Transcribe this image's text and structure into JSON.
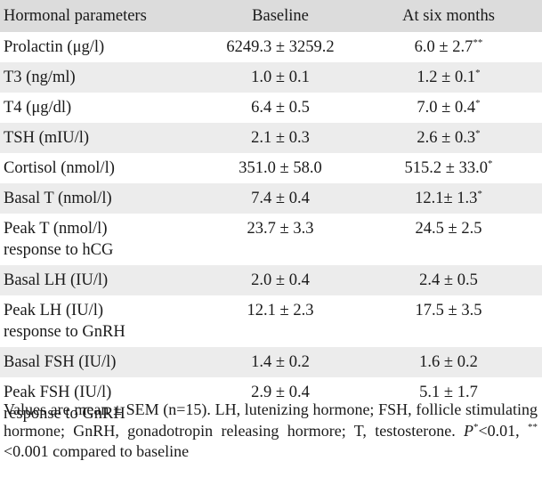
{
  "table": {
    "headers": [
      "Hormonal parameters",
      "Baseline",
      "At six months"
    ],
    "rows": [
      {
        "param": "Prolactin (μg/l)",
        "baseline": "6249.3 ± 3259.2",
        "six_months": "6.0 ± 2.7",
        "mark": "**"
      },
      {
        "param": "T3 (ng/ml)",
        "baseline": "1.0 ± 0.1",
        "six_months": "1.2 ± 0.1",
        "mark": "*"
      },
      {
        "param": "T4 (μg/dl)",
        "baseline": "6.4 ± 0.5",
        "six_months": "7.0 ± 0.4",
        "mark": "*"
      },
      {
        "param": "TSH (mIU/l)",
        "baseline": "2.1 ± 0.3",
        "six_months": "2.6 ± 0.3",
        "mark": "*"
      },
      {
        "param": "Cortisol (nmol/l)",
        "baseline": "351.0 ± 58.0",
        "six_months": "515.2 ± 33.0",
        "mark": "*"
      },
      {
        "param": "Basal T (nmol/l)",
        "baseline": "7.4 ± 0.4",
        "six_months": "12.1± 1.3",
        "mark": "*"
      },
      {
        "param": "Peak T (nmol/l)",
        "param2": "response to hCG",
        "baseline": "23.7 ± 3.3",
        "six_months": "24.5 ± 2.5",
        "mark": ""
      },
      {
        "param": "Basal LH (IU/l)",
        "baseline": "2.0 ± 0.4",
        "six_months": "2.4 ± 0.5",
        "mark": ""
      },
      {
        "param": "Peak LH (IU/l)",
        "param2": "response to GnRH",
        "baseline": "12.1 ± 2.3",
        "six_months": "17.5 ± 3.5",
        "mark": ""
      },
      {
        "param": "Basal FSH (IU/l)",
        "baseline": "1.4 ± 0.2",
        "six_months": "1.6 ± 0.2",
        "mark": ""
      },
      {
        "param": "Peak FSH (IU/l)",
        "param2": "response to GnRH",
        "baseline": "2.9 ± 0.4",
        "six_months": "5.1 ± 1.7",
        "mark": ""
      }
    ]
  },
  "footnote": {
    "text": "Values are mean ± SEM (n=15). LH, lutenizing hormone; FSH, follicle stimulating hormone; GnRH, gonadotropin releasing hormore; T, testosterone. ",
    "p_label": "P",
    "p_mark": "*",
    "p_text": "<0.01, ",
    "pp_mark": "**",
    "pp_text": "<0.001 compared to baseline"
  }
}
